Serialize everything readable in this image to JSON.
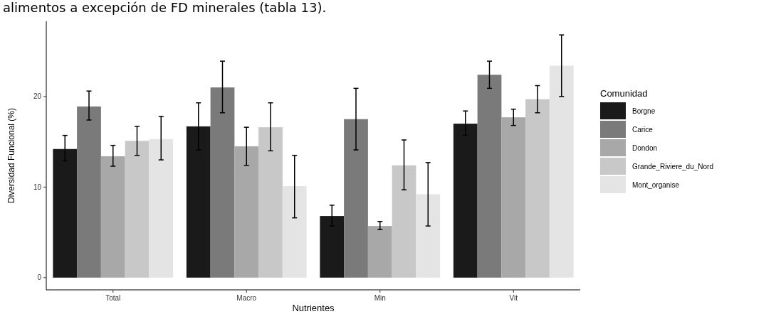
{
  "chart_data": {
    "type": "bar",
    "annotations": [
      "alimentos a excepción de FD minerales (tabla 13)."
    ],
    "xlabel": "Nutrientes",
    "ylabel": "Diversidad Funcional (%)",
    "legend_title": "Comunidad",
    "legend": "right",
    "grid": false,
    "categories": [
      "Total",
      "Macro",
      "Min",
      "Vit"
    ],
    "ylim": [
      -1.35,
      28.3
    ],
    "yticks": [
      0,
      10,
      20
    ],
    "series": [
      {
        "name": "Borgne",
        "color": "#1a1a1a",
        "values": [
          14.2,
          16.7,
          6.8,
          17.0
        ],
        "errors": [
          [
            12.9,
            15.7
          ],
          [
            14.1,
            19.3
          ],
          [
            5.7,
            8.0
          ],
          [
            15.7,
            18.4
          ]
        ]
      },
      {
        "name": "Carice",
        "color": "#7a7a7a",
        "values": [
          18.9,
          21.0,
          17.5,
          22.4
        ],
        "errors": [
          [
            17.4,
            20.6
          ],
          [
            18.2,
            23.9
          ],
          [
            14.1,
            20.9
          ],
          [
            20.9,
            23.9
          ]
        ]
      },
      {
        "name": "Dondon",
        "color": "#a8a8a8",
        "values": [
          13.4,
          14.5,
          5.7,
          17.7
        ],
        "errors": [
          [
            12.3,
            14.6
          ],
          [
            12.4,
            16.6
          ],
          [
            5.3,
            6.2
          ],
          [
            16.8,
            18.6
          ]
        ]
      },
      {
        "name": "Grande_Riviere_du_Nord",
        "color": "#c8c8c8",
        "values": [
          15.1,
          16.6,
          12.4,
          19.7
        ],
        "errors": [
          [
            13.5,
            16.7
          ],
          [
            14.0,
            19.3
          ],
          [
            9.7,
            15.2
          ],
          [
            18.2,
            21.2
          ]
        ]
      },
      {
        "name": "Mont_organise",
        "color": "#e4e4e4",
        "values": [
          15.3,
          10.1,
          9.2,
          23.4
        ],
        "errors": [
          [
            13.0,
            17.8
          ],
          [
            6.6,
            13.5
          ],
          [
            5.7,
            12.7
          ],
          [
            20.0,
            26.8
          ]
        ]
      }
    ]
  }
}
